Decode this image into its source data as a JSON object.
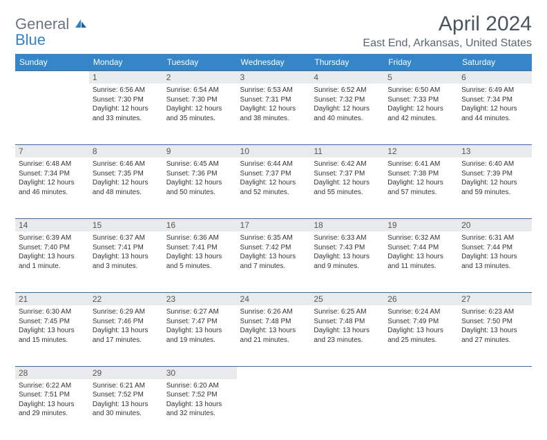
{
  "header": {
    "logo_text_1": "General",
    "logo_text_2": "Blue",
    "month_title": "April 2024",
    "location": "East End, Arkansas, United States"
  },
  "colors": {
    "header_bg": "#3586c8",
    "header_text": "#ffffff",
    "daynum_bg": "#e9eaeb",
    "border": "#3b6a9a",
    "logo_gray": "#6b7580",
    "logo_blue": "#2f82c6"
  },
  "weekdays": [
    "Sunday",
    "Monday",
    "Tuesday",
    "Wednesday",
    "Thursday",
    "Friday",
    "Saturday"
  ],
  "weeks": [
    {
      "nums": [
        "",
        "1",
        "2",
        "3",
        "4",
        "5",
        "6"
      ],
      "cells": [
        {
          "empty": true
        },
        {
          "sunrise": "Sunrise: 6:56 AM",
          "sunset": "Sunset: 7:30 PM",
          "day1": "Daylight: 12 hours",
          "day2": "and 33 minutes."
        },
        {
          "sunrise": "Sunrise: 6:54 AM",
          "sunset": "Sunset: 7:30 PM",
          "day1": "Daylight: 12 hours",
          "day2": "and 35 minutes."
        },
        {
          "sunrise": "Sunrise: 6:53 AM",
          "sunset": "Sunset: 7:31 PM",
          "day1": "Daylight: 12 hours",
          "day2": "and 38 minutes."
        },
        {
          "sunrise": "Sunrise: 6:52 AM",
          "sunset": "Sunset: 7:32 PM",
          "day1": "Daylight: 12 hours",
          "day2": "and 40 minutes."
        },
        {
          "sunrise": "Sunrise: 6:50 AM",
          "sunset": "Sunset: 7:33 PM",
          "day1": "Daylight: 12 hours",
          "day2": "and 42 minutes."
        },
        {
          "sunrise": "Sunrise: 6:49 AM",
          "sunset": "Sunset: 7:34 PM",
          "day1": "Daylight: 12 hours",
          "day2": "and 44 minutes."
        }
      ]
    },
    {
      "nums": [
        "7",
        "8",
        "9",
        "10",
        "11",
        "12",
        "13"
      ],
      "cells": [
        {
          "sunrise": "Sunrise: 6:48 AM",
          "sunset": "Sunset: 7:34 PM",
          "day1": "Daylight: 12 hours",
          "day2": "and 46 minutes."
        },
        {
          "sunrise": "Sunrise: 6:46 AM",
          "sunset": "Sunset: 7:35 PM",
          "day1": "Daylight: 12 hours",
          "day2": "and 48 minutes."
        },
        {
          "sunrise": "Sunrise: 6:45 AM",
          "sunset": "Sunset: 7:36 PM",
          "day1": "Daylight: 12 hours",
          "day2": "and 50 minutes."
        },
        {
          "sunrise": "Sunrise: 6:44 AM",
          "sunset": "Sunset: 7:37 PM",
          "day1": "Daylight: 12 hours",
          "day2": "and 52 minutes."
        },
        {
          "sunrise": "Sunrise: 6:42 AM",
          "sunset": "Sunset: 7:37 PM",
          "day1": "Daylight: 12 hours",
          "day2": "and 55 minutes."
        },
        {
          "sunrise": "Sunrise: 6:41 AM",
          "sunset": "Sunset: 7:38 PM",
          "day1": "Daylight: 12 hours",
          "day2": "and 57 minutes."
        },
        {
          "sunrise": "Sunrise: 6:40 AM",
          "sunset": "Sunset: 7:39 PM",
          "day1": "Daylight: 12 hours",
          "day2": "and 59 minutes."
        }
      ]
    },
    {
      "nums": [
        "14",
        "15",
        "16",
        "17",
        "18",
        "19",
        "20"
      ],
      "cells": [
        {
          "sunrise": "Sunrise: 6:39 AM",
          "sunset": "Sunset: 7:40 PM",
          "day1": "Daylight: 13 hours",
          "day2": "and 1 minute."
        },
        {
          "sunrise": "Sunrise: 6:37 AM",
          "sunset": "Sunset: 7:41 PM",
          "day1": "Daylight: 13 hours",
          "day2": "and 3 minutes."
        },
        {
          "sunrise": "Sunrise: 6:36 AM",
          "sunset": "Sunset: 7:41 PM",
          "day1": "Daylight: 13 hours",
          "day2": "and 5 minutes."
        },
        {
          "sunrise": "Sunrise: 6:35 AM",
          "sunset": "Sunset: 7:42 PM",
          "day1": "Daylight: 13 hours",
          "day2": "and 7 minutes."
        },
        {
          "sunrise": "Sunrise: 6:33 AM",
          "sunset": "Sunset: 7:43 PM",
          "day1": "Daylight: 13 hours",
          "day2": "and 9 minutes."
        },
        {
          "sunrise": "Sunrise: 6:32 AM",
          "sunset": "Sunset: 7:44 PM",
          "day1": "Daylight: 13 hours",
          "day2": "and 11 minutes."
        },
        {
          "sunrise": "Sunrise: 6:31 AM",
          "sunset": "Sunset: 7:44 PM",
          "day1": "Daylight: 13 hours",
          "day2": "and 13 minutes."
        }
      ]
    },
    {
      "nums": [
        "21",
        "22",
        "23",
        "24",
        "25",
        "26",
        "27"
      ],
      "cells": [
        {
          "sunrise": "Sunrise: 6:30 AM",
          "sunset": "Sunset: 7:45 PM",
          "day1": "Daylight: 13 hours",
          "day2": "and 15 minutes."
        },
        {
          "sunrise": "Sunrise: 6:29 AM",
          "sunset": "Sunset: 7:46 PM",
          "day1": "Daylight: 13 hours",
          "day2": "and 17 minutes."
        },
        {
          "sunrise": "Sunrise: 6:27 AM",
          "sunset": "Sunset: 7:47 PM",
          "day1": "Daylight: 13 hours",
          "day2": "and 19 minutes."
        },
        {
          "sunrise": "Sunrise: 6:26 AM",
          "sunset": "Sunset: 7:48 PM",
          "day1": "Daylight: 13 hours",
          "day2": "and 21 minutes."
        },
        {
          "sunrise": "Sunrise: 6:25 AM",
          "sunset": "Sunset: 7:48 PM",
          "day1": "Daylight: 13 hours",
          "day2": "and 23 minutes."
        },
        {
          "sunrise": "Sunrise: 6:24 AM",
          "sunset": "Sunset: 7:49 PM",
          "day1": "Daylight: 13 hours",
          "day2": "and 25 minutes."
        },
        {
          "sunrise": "Sunrise: 6:23 AM",
          "sunset": "Sunset: 7:50 PM",
          "day1": "Daylight: 13 hours",
          "day2": "and 27 minutes."
        }
      ]
    },
    {
      "nums": [
        "28",
        "29",
        "30",
        "",
        "",
        "",
        ""
      ],
      "cells": [
        {
          "sunrise": "Sunrise: 6:22 AM",
          "sunset": "Sunset: 7:51 PM",
          "day1": "Daylight: 13 hours",
          "day2": "and 29 minutes."
        },
        {
          "sunrise": "Sunrise: 6:21 AM",
          "sunset": "Sunset: 7:52 PM",
          "day1": "Daylight: 13 hours",
          "day2": "and 30 minutes."
        },
        {
          "sunrise": "Sunrise: 6:20 AM",
          "sunset": "Sunset: 7:52 PM",
          "day1": "Daylight: 13 hours",
          "day2": "and 32 minutes."
        },
        {
          "empty": true
        },
        {
          "empty": true
        },
        {
          "empty": true
        },
        {
          "empty": true
        }
      ]
    }
  ]
}
